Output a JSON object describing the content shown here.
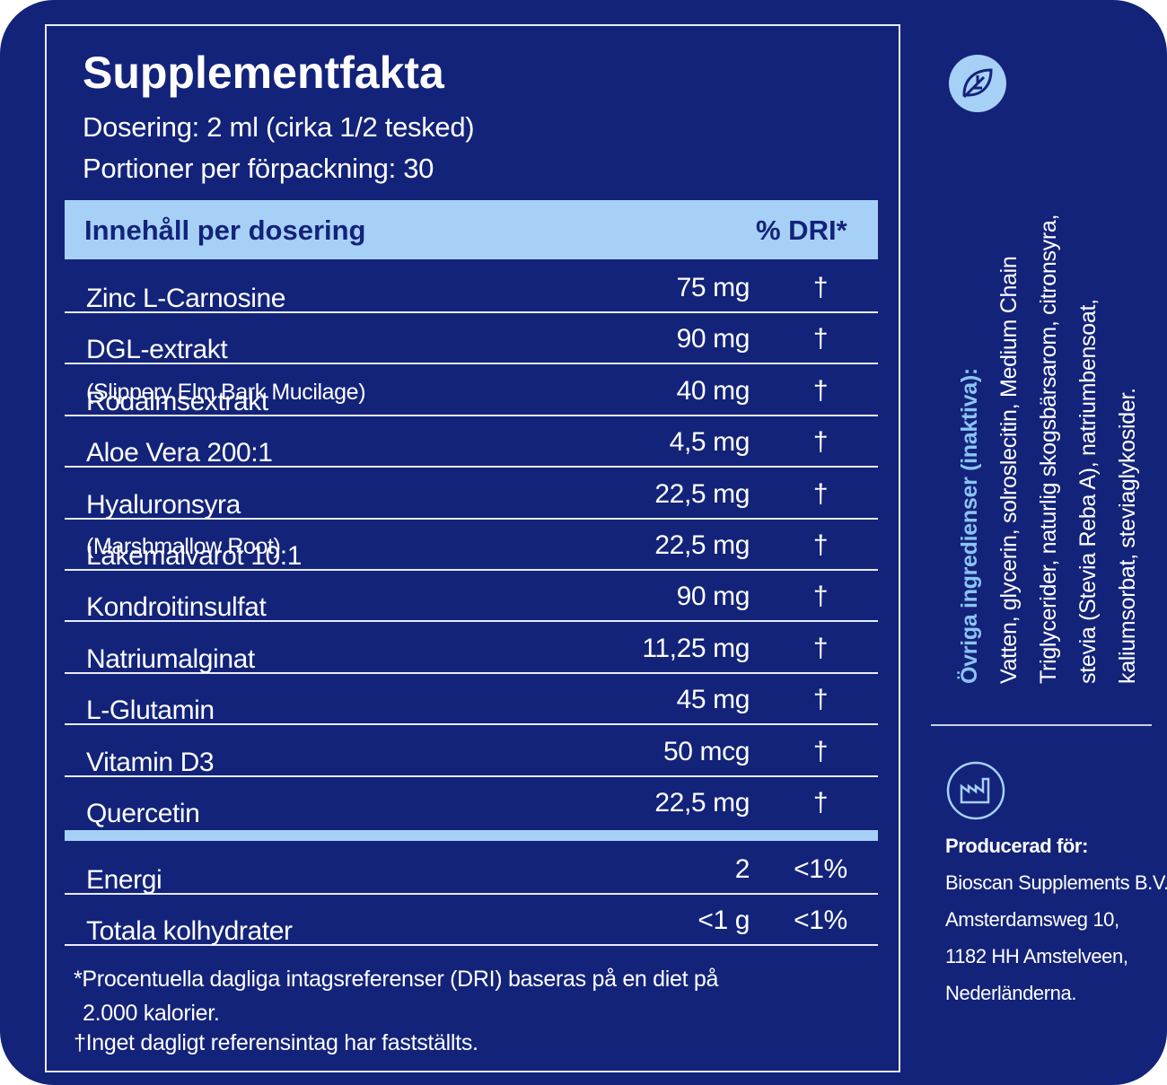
{
  "header": {
    "title": "Supplementfakta",
    "lines": [
      "Dosering: 2 ml (cirka 1/2 tesked)",
      "Portioner per förpackning: 30"
    ]
  },
  "table": {
    "header": [
      "Innehåll per dosering",
      "% DRI*"
    ],
    "rows": [
      {
        "name": "Zinc L-Carnosine",
        "amount": "75 mg",
        "dri": "†"
      },
      {
        "name": "DGL-extrakt",
        "amount": "90 mg",
        "dri": "†"
      },
      {
        "name": "Rödalmsextrakt",
        "note": "(Slippery Elm Bark Mucilage)",
        "amount": "40 mg",
        "dri": "†"
      },
      {
        "name": "Aloe Vera 200:1",
        "amount": "4,5 mg",
        "dri": "†"
      },
      {
        "name": "Hyaluronsyra",
        "amount": "22,5 mg",
        "dri": "†"
      },
      {
        "name": "Läkemalvarot 10:1",
        "note": "(Marshmallow Root)",
        "amount": "22,5 mg",
        "dri": "†"
      },
      {
        "name": "Kondroitinsulfat",
        "amount": "90 mg",
        "dri": "†"
      },
      {
        "name": "Natriumalginat",
        "amount": "11,25 mg",
        "dri": "†"
      },
      {
        "name": "L-Glutamin",
        "amount": "45 mg",
        "dri": "†"
      },
      {
        "name": "Vitamin D3",
        "amount": "50 mcg",
        "dri": "†"
      },
      {
        "name": "Quercetin",
        "amount": "22,5 mg",
        "dri": "†"
      }
    ],
    "totals": [
      {
        "name": "Energi",
        "amount": "2",
        "dri": "<1%"
      },
      {
        "name": "Totala kolhydrater",
        "amount": "<1 g",
        "dri": "<1%"
      }
    ]
  },
  "footnotes": [
    "*Procentuella dagliga intagsreferenser (DRI) baseras på en diet på 2.000 kalorier.",
    "†Inget dagligt referensintag har fastställts."
  ],
  "side": {
    "ingredients_title": "Övriga ingredienser (inaktiva):",
    "ingredients_lines": [
      "Vatten, glycerin, solroslecitin, Medium Chain",
      "Triglycerider, naturlig skogsbärsarom, citronsyra,",
      "stevia (Stevia Reba A), natriumbensoat,",
      "kaliumsorbat, steviaglykosider."
    ],
    "producer_title": "Producerad för:",
    "producer_lines": [
      "Bioscan Supplements B.V.",
      "Amsterdamsweg 10,",
      "1182 HH Amstelveen,",
      "Nederländerna."
    ]
  }
}
